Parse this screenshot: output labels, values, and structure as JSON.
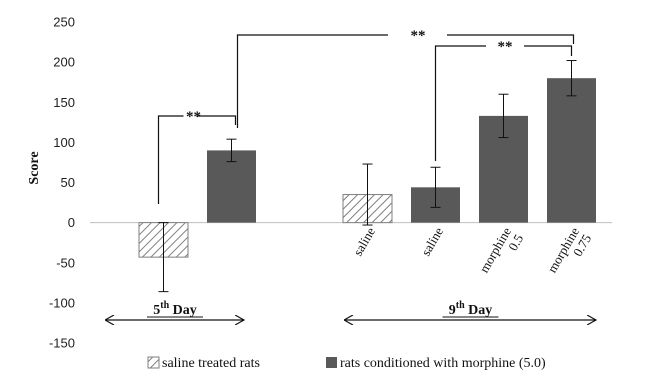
{
  "chart_data": {
    "type": "bar",
    "ylabel": "Score",
    "ylim": [
      -150,
      250
    ],
    "y_ticks": [
      "250",
      "200",
      "150",
      "100",
      "50",
      "0",
      "-50",
      "-100",
      "-150"
    ],
    "bars": [
      {
        "group": "5th Day",
        "series": "saline treated rats",
        "label": "",
        "value": -43,
        "err": 43
      },
      {
        "group": "5th Day",
        "series": "rats conditioned with morphine (5.0)",
        "label": "",
        "value": 90,
        "err": 14
      },
      {
        "group": "9th Day",
        "series": "saline treated rats",
        "label": "saline",
        "value": 35,
        "err": 38
      },
      {
        "group": "9th Day",
        "series": "rats conditioned with morphine (5.0)",
        "label": "saline",
        "value": 44,
        "err": 25
      },
      {
        "group": "9th Day",
        "series": "rats conditioned with morphine (5.0)",
        "label": "morphine 0.5",
        "value": 133,
        "err": 27
      },
      {
        "group": "9th Day",
        "series": "rats conditioned with morphine (5.0)",
        "label": "morphine 0.75",
        "value": 180,
        "err": 22
      }
    ],
    "groups": [
      {
        "main": "5",
        "sup": "th",
        "rest": " Day"
      },
      {
        "main": "9",
        "sup": "th",
        "rest": " Day"
      }
    ],
    "significance": [
      {
        "from_bar": 0,
        "to_bar": 1,
        "label": "**"
      },
      {
        "from_bar": 1,
        "to_bar": 5,
        "label": "**"
      },
      {
        "from_bar": 3,
        "to_bar": 5,
        "label": "**"
      }
    ],
    "legend": [
      {
        "name": "saline treated rats",
        "pattern": "hatched"
      },
      {
        "name": "rats conditioned with morphine (5.0)",
        "pattern": "solid"
      }
    ],
    "colors": {
      "solid": "#595959",
      "hatch": "#7f7f7f",
      "axis": "#bfbfbf"
    },
    "grid": false,
    "legend_position": "bottom"
  }
}
